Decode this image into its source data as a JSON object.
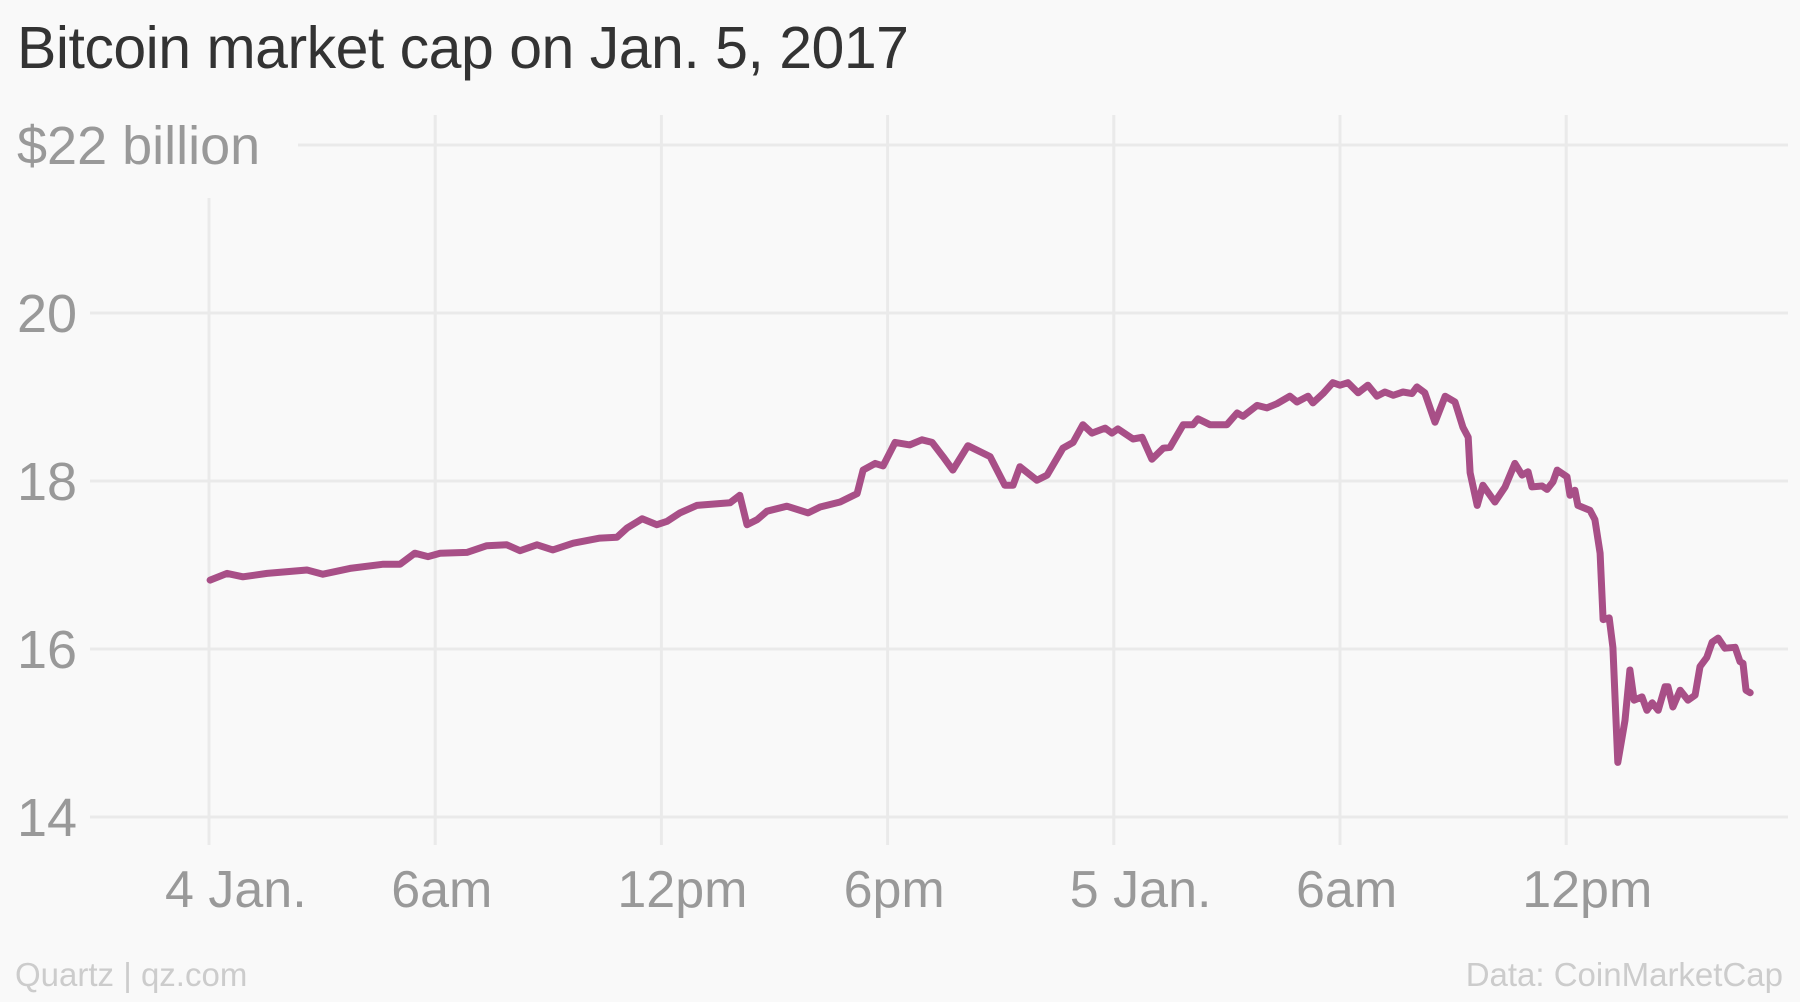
{
  "title": "Bitcoin market cap on Jan. 5, 2017",
  "footer": {
    "source_left": "Quartz | qz.com",
    "source_right": "Data: CoinMarketCap"
  },
  "colors": {
    "line": "#a84f87",
    "grid": "#eaeaea",
    "axis_text": "#999999",
    "title_text": "#333333",
    "footer_text": "#cccccc",
    "background": "#f9f9f9"
  },
  "chart_data": {
    "type": "line",
    "title": "Bitcoin market cap on Jan. 5, 2017",
    "xlabel": "",
    "ylabel": "$ billion",
    "y_unit_label": "$22 billion",
    "ylim": [
      14,
      22
    ],
    "yticks": [
      {
        "value": 22,
        "label": "$22 billion"
      },
      {
        "value": 20,
        "label": "20"
      },
      {
        "value": 18,
        "label": "18"
      },
      {
        "value": 16,
        "label": "16"
      },
      {
        "value": 14,
        "label": "14"
      }
    ],
    "x_unit": "hours since 4 Jan. 2017 00:00",
    "xlim": [
      0,
      42
    ],
    "xticks": [
      {
        "value": 0,
        "label": "4 Jan."
      },
      {
        "value": 6,
        "label": "6am"
      },
      {
        "value": 12,
        "label": "12pm"
      },
      {
        "value": 18,
        "label": "6pm"
      },
      {
        "value": 24,
        "label": "5 Jan."
      },
      {
        "value": 30,
        "label": "6am"
      },
      {
        "value": 36,
        "label": "12pm"
      }
    ],
    "grid": true,
    "legend": null,
    "series": [
      {
        "name": "Bitcoin market cap ($ billion)",
        "points": [
          [
            0.03,
            16.82
          ],
          [
            0.48,
            16.9
          ],
          [
            0.9,
            16.86
          ],
          [
            1.54,
            16.9
          ],
          [
            2.6,
            16.94
          ],
          [
            3.02,
            16.89
          ],
          [
            3.74,
            16.96
          ],
          [
            4.62,
            17.01
          ],
          [
            5.07,
            17.01
          ],
          [
            5.46,
            17.14
          ],
          [
            5.81,
            17.1
          ],
          [
            6.13,
            17.14
          ],
          [
            6.84,
            17.15
          ],
          [
            7.37,
            17.23
          ],
          [
            7.9,
            17.24
          ],
          [
            8.25,
            17.17
          ],
          [
            8.7,
            17.24
          ],
          [
            9.12,
            17.18
          ],
          [
            9.66,
            17.26
          ],
          [
            10.37,
            17.32
          ],
          [
            10.82,
            17.33
          ],
          [
            11.09,
            17.44
          ],
          [
            11.49,
            17.55
          ],
          [
            11.88,
            17.48
          ],
          [
            12.15,
            17.52
          ],
          [
            12.49,
            17.62
          ],
          [
            12.94,
            17.71
          ],
          [
            13.82,
            17.74
          ],
          [
            14.08,
            17.83
          ],
          [
            14.27,
            17.48
          ],
          [
            14.54,
            17.54
          ],
          [
            14.8,
            17.64
          ],
          [
            15.33,
            17.7
          ],
          [
            15.89,
            17.62
          ],
          [
            16.21,
            17.69
          ],
          [
            16.74,
            17.75
          ],
          [
            17.19,
            17.85
          ],
          [
            17.35,
            18.13
          ],
          [
            17.67,
            18.21
          ],
          [
            17.88,
            18.18
          ],
          [
            18.2,
            18.46
          ],
          [
            18.59,
            18.43
          ],
          [
            18.91,
            18.49
          ],
          [
            19.18,
            18.46
          ],
          [
            19.47,
            18.29
          ],
          [
            19.73,
            18.13
          ],
          [
            20.13,
            18.42
          ],
          [
            20.72,
            18.29
          ],
          [
            21.11,
            17.95
          ],
          [
            21.33,
            17.95
          ],
          [
            21.51,
            18.17
          ],
          [
            21.96,
            18.01
          ],
          [
            22.23,
            18.07
          ],
          [
            22.65,
            18.39
          ],
          [
            22.92,
            18.46
          ],
          [
            23.18,
            18.67
          ],
          [
            23.42,
            18.57
          ],
          [
            23.77,
            18.63
          ],
          [
            23.95,
            18.57
          ],
          [
            24.11,
            18.62
          ],
          [
            24.51,
            18.5
          ],
          [
            24.75,
            18.52
          ],
          [
            25.01,
            18.26
          ],
          [
            25.31,
            18.39
          ],
          [
            25.49,
            18.4
          ],
          [
            25.84,
            18.67
          ],
          [
            26.1,
            18.67
          ],
          [
            26.23,
            18.74
          ],
          [
            26.55,
            18.67
          ],
          [
            27.0,
            18.67
          ],
          [
            27.27,
            18.81
          ],
          [
            27.43,
            18.77
          ],
          [
            27.8,
            18.9
          ],
          [
            28.06,
            18.87
          ],
          [
            28.33,
            18.92
          ],
          [
            28.67,
            19.01
          ],
          [
            28.86,
            18.94
          ],
          [
            29.15,
            19.01
          ],
          [
            29.28,
            18.93
          ],
          [
            29.55,
            19.04
          ],
          [
            29.81,
            19.17
          ],
          [
            30.0,
            19.14
          ],
          [
            30.21,
            19.17
          ],
          [
            30.48,
            19.05
          ],
          [
            30.74,
            19.14
          ],
          [
            30.98,
            19.01
          ],
          [
            31.19,
            19.06
          ],
          [
            31.41,
            19.02
          ],
          [
            31.67,
            19.06
          ],
          [
            31.91,
            19.04
          ],
          [
            32.04,
            19.12
          ],
          [
            32.25,
            19.05
          ],
          [
            32.52,
            18.7
          ],
          [
            32.79,
            19.01
          ],
          [
            33.05,
            18.94
          ],
          [
            33.26,
            18.64
          ],
          [
            33.4,
            18.52
          ],
          [
            33.45,
            18.1
          ],
          [
            33.64,
            17.71
          ],
          [
            33.79,
            17.95
          ],
          [
            34.11,
            17.75
          ],
          [
            34.38,
            17.93
          ],
          [
            34.64,
            18.21
          ],
          [
            34.83,
            18.07
          ],
          [
            34.99,
            18.11
          ],
          [
            35.09,
            17.93
          ],
          [
            35.36,
            17.94
          ],
          [
            35.49,
            17.9
          ],
          [
            35.65,
            17.99
          ],
          [
            35.76,
            18.13
          ],
          [
            36.02,
            18.05
          ],
          [
            36.1,
            17.83
          ],
          [
            36.23,
            17.89
          ],
          [
            36.31,
            17.71
          ],
          [
            36.63,
            17.65
          ],
          [
            36.76,
            17.54
          ],
          [
            36.9,
            17.14
          ],
          [
            36.98,
            16.35
          ],
          [
            37.14,
            16.37
          ],
          [
            37.24,
            16.02
          ],
          [
            37.37,
            14.65
          ],
          [
            37.56,
            15.15
          ],
          [
            37.69,
            15.75
          ],
          [
            37.8,
            15.39
          ],
          [
            38.01,
            15.43
          ],
          [
            38.14,
            15.27
          ],
          [
            38.28,
            15.36
          ],
          [
            38.44,
            15.27
          ],
          [
            38.62,
            15.55
          ],
          [
            38.7,
            15.55
          ],
          [
            38.83,
            15.31
          ],
          [
            39.02,
            15.51
          ],
          [
            39.23,
            15.39
          ],
          [
            39.42,
            15.45
          ],
          [
            39.55,
            15.79
          ],
          [
            39.73,
            15.9
          ],
          [
            39.87,
            16.08
          ],
          [
            40.03,
            16.13
          ],
          [
            40.21,
            16.01
          ],
          [
            40.48,
            16.02
          ],
          [
            40.61,
            15.85
          ],
          [
            40.69,
            15.83
          ],
          [
            40.77,
            15.51
          ],
          [
            40.88,
            15.48
          ]
        ]
      }
    ]
  }
}
